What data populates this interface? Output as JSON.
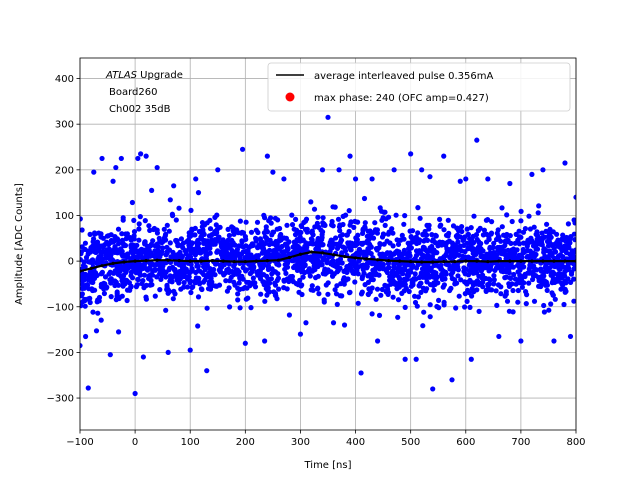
{
  "chart_data": {
    "type": "scatter",
    "title": "",
    "xlabel": "Time [ns]",
    "ylabel": "Amplitude [ADC Counts]",
    "xlim": [
      -100,
      800
    ],
    "ylim": [
      -370,
      445
    ],
    "x_ticks": [
      -100,
      0,
      100,
      200,
      300,
      400,
      500,
      600,
      700,
      800
    ],
    "y_ticks": [
      -300,
      -200,
      -100,
      0,
      100,
      200,
      300,
      400
    ],
    "grid": true,
    "legend_position": "top-right",
    "annotation": {
      "line1_italic": "ATLAS",
      "line1_rest": " Upgrade",
      "line2": "Board260",
      "line3": "Ch002 35dB"
    },
    "series": [
      {
        "name": "average interleaved pulse 0.356mA",
        "kind": "line",
        "color": "#000000",
        "x": [
          -100,
          -80,
          -60,
          -40,
          -20,
          0,
          20,
          40,
          60,
          80,
          100,
          120,
          140,
          160,
          180,
          200,
          220,
          240,
          260,
          280,
          300,
          320,
          340,
          360,
          380,
          400,
          420,
          440,
          460,
          480,
          500,
          520,
          540,
          560,
          580,
          600,
          620,
          640,
          660,
          680,
          700,
          720,
          740,
          760,
          780,
          800
        ],
        "y": [
          -22,
          -16,
          -10,
          -5,
          -2,
          0,
          1,
          2,
          2,
          1,
          0,
          0,
          1,
          0,
          -1,
          -1,
          0,
          1,
          2,
          8,
          15,
          20,
          18,
          14,
          10,
          7,
          5,
          3,
          1,
          0,
          -1,
          -2,
          -2,
          -1,
          -1,
          0,
          0,
          -1,
          0,
          0,
          0,
          0,
          0,
          0,
          0,
          0
        ]
      },
      {
        "name": "max phase: 240 (OFC amp=0.427)",
        "kind": "marker",
        "color": "#ff0000",
        "x": [],
        "y": []
      },
      {
        "name": "",
        "kind": "scatter",
        "color": "#0000ff",
        "x": [
          -100,
          -85,
          -75,
          -60,
          -45,
          -40,
          -35,
          -30,
          -25,
          0,
          5,
          10,
          15,
          20,
          30,
          40,
          60,
          70,
          100,
          110,
          115,
          130,
          150,
          195,
          200,
          235,
          240,
          250,
          270,
          300,
          310,
          340,
          350,
          360,
          370,
          380,
          390,
          400,
          410,
          430,
          440,
          470,
          490,
          500,
          510,
          520,
          535,
          540,
          560,
          575,
          590,
          600,
          610,
          620,
          640,
          660,
          680,
          700,
          720,
          740,
          760,
          780,
          790,
          800
        ],
        "y": [
          -185,
          -278,
          195,
          225,
          -205,
          175,
          205,
          -155,
          225,
          -290,
          225,
          235,
          -210,
          230,
          155,
          205,
          -200,
          165,
          -195,
          180,
          150,
          -240,
          200,
          245,
          -180,
          -175,
          230,
          195,
          180,
          -160,
          -135,
          200,
          315,
          -135,
          200,
          -140,
          230,
          180,
          -245,
          180,
          -175,
          200,
          -215,
          235,
          -215,
          200,
          185,
          -280,
          230,
          -260,
          175,
          180,
          -215,
          265,
          180,
          -165,
          170,
          -175,
          190,
          200,
          -175,
          215,
          -165,
          140
        ]
      }
    ]
  }
}
